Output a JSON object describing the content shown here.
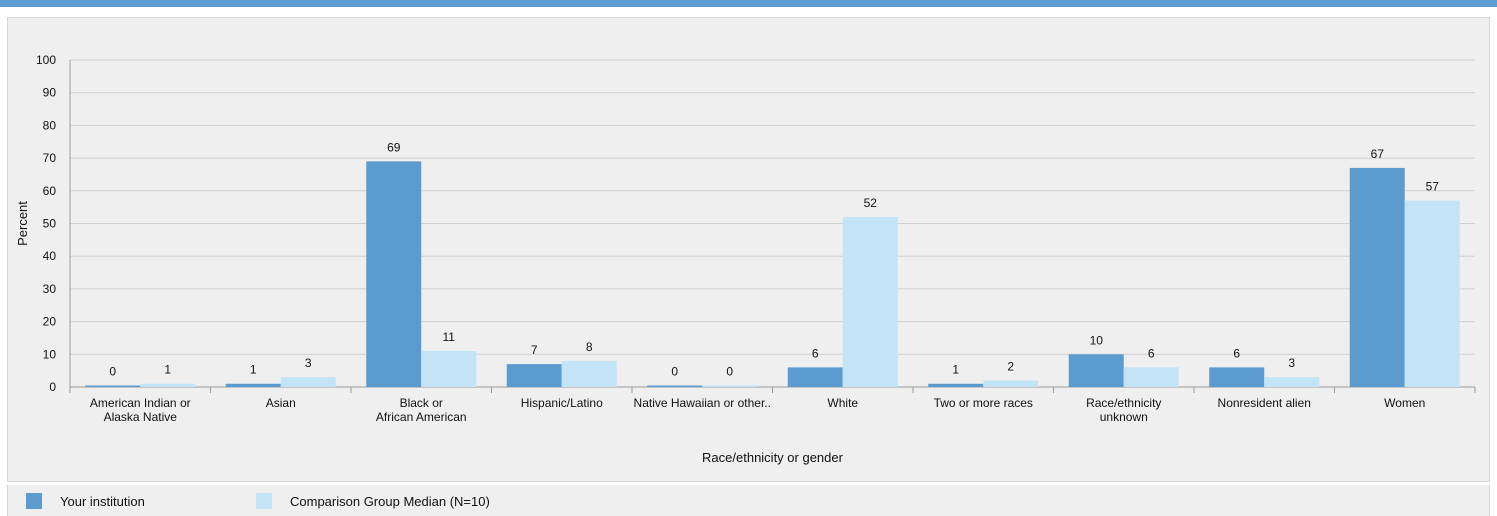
{
  "chart_data": {
    "type": "bar",
    "categories": [
      [
        "American Indian or",
        "Alaska Native"
      ],
      [
        "Asian"
      ],
      [
        "Black or",
        "African American"
      ],
      [
        "Hispanic/Latino"
      ],
      [
        "Native Hawaiian  or other.."
      ],
      [
        "White"
      ],
      [
        "Two or more races"
      ],
      [
        "Race/ethnicity",
        "unknown"
      ],
      [
        "Nonresident alien"
      ],
      [
        "Women"
      ]
    ],
    "series": [
      {
        "name": "Your institution",
        "color": "#5b9bd0",
        "values": [
          0,
          1,
          69,
          7,
          0,
          6,
          1,
          10,
          6,
          67
        ]
      },
      {
        "name": "Comparison Group Median (N=10)",
        "color": "#c3e3f7",
        "values": [
          1,
          3,
          11,
          8,
          0,
          52,
          2,
          6,
          3,
          57
        ]
      }
    ],
    "xlabel": "Race/ethnicity or gender",
    "ylabel": "Percent",
    "ylim": [
      0,
      100
    ],
    "yticks": [
      0,
      10,
      20,
      30,
      40,
      50,
      60,
      70,
      80,
      90,
      100
    ],
    "grid": true,
    "legend": "bottom-left"
  },
  "legend": {
    "items": [
      {
        "label": "Your institution",
        "color": "#5b9bd0"
      },
      {
        "label": "Comparison Group Median (N=10)",
        "color": "#c3e3f7"
      }
    ]
  }
}
